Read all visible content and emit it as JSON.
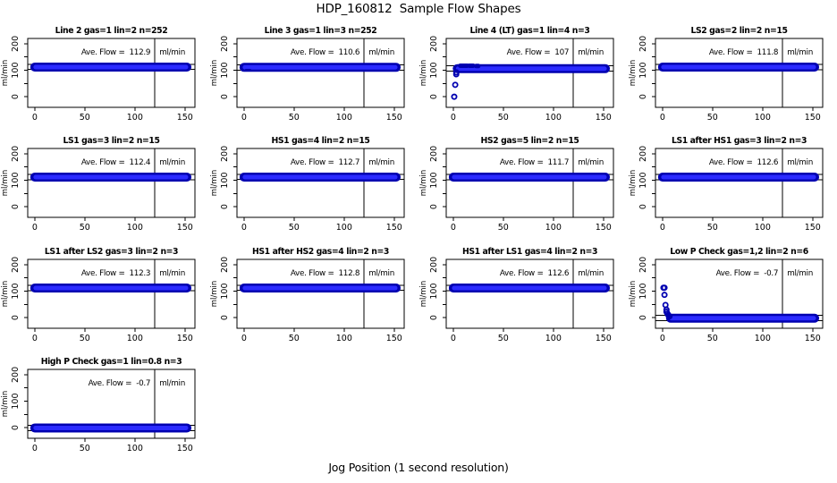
{
  "page_title": "HDP_160812  Sample Flow Shapes",
  "x_axis_label": "Jog Position (1 second resolution)",
  "chart_data": {
    "type": "scatter",
    "grid": "4x4 panel matrix, 13 panels used",
    "shared": {
      "ylabel": "ml/min",
      "xticks": [
        0,
        50,
        100,
        150
      ],
      "yticks_labeled": [
        0,
        100,
        200
      ],
      "yticks_minor": [
        50,
        150
      ],
      "xlim": [
        -7,
        160
      ],
      "ylim": [
        -40,
        220
      ],
      "vline_x": 120,
      "tolerance_band": 10,
      "point_color_outer": "#0000B0",
      "point_color_inner": "#2B2BFF",
      "axis_color": "#000000",
      "annotation_suffix": "ml/min",
      "legend": "none",
      "gridlines": "off"
    },
    "plots": [
      {
        "title": "Line 2 gas=1 lin=2 n=252",
        "ave_flow": 112.9,
        "ann_left": "Ave. Flow =  112.9",
        "bands": [
          {
            "x0": 0,
            "x1": 152,
            "y": 112,
            "w": 10
          }
        ],
        "points": []
      },
      {
        "title": "Line 3 gas=1 lin=3 n=252",
        "ave_flow": 110.6,
        "ann_left": "Ave. Flow =  110.6",
        "bands": [
          {
            "x0": 0,
            "x1": 152,
            "y": 111,
            "w": 10
          },
          {
            "x0": 2,
            "x1": 6,
            "y": 100,
            "w": 3
          }
        ],
        "points": []
      },
      {
        "title": "Line 4 (LT) gas=1 lin=4 n=3",
        "ave_flow": 107,
        "ann_left": "Ave. Flow =  107",
        "bands": [
          {
            "x0": 4,
            "x1": 152,
            "y": 106,
            "w": 10
          },
          {
            "x0": 7,
            "x1": 14,
            "y": 117,
            "w": 5
          },
          {
            "x0": 16,
            "x1": 20,
            "y": 117,
            "w": 5
          },
          {
            "x0": 23,
            "x1": 25,
            "y": 116,
            "w": 5
          }
        ],
        "points": [
          [
            1,
            0
          ],
          [
            2,
            45
          ],
          [
            3,
            85
          ],
          [
            3,
            92
          ]
        ]
      },
      {
        "title": "LS2 gas=2 lin=2 n=15",
        "ave_flow": 111.8,
        "ann_left": "Ave. Flow =  111.8",
        "bands": [
          {
            "x0": 0,
            "x1": 152,
            "y": 112,
            "w": 10
          }
        ],
        "points": []
      },
      {
        "title": "LS1 gas=3 lin=2 n=15",
        "ave_flow": 112.4,
        "ann_left": "Ave. Flow =  112.4",
        "bands": [
          {
            "x0": 0,
            "x1": 152,
            "y": 112,
            "w": 10
          }
        ],
        "points": []
      },
      {
        "title": "HS1 gas=4 lin=2 n=15",
        "ave_flow": 112.7,
        "ann_left": "Ave. Flow =  112.7",
        "bands": [
          {
            "x0": 0,
            "x1": 152,
            "y": 112,
            "w": 10
          }
        ],
        "points": []
      },
      {
        "title": "HS2 gas=5 lin=2 n=15",
        "ave_flow": 111.7,
        "ann_left": "Ave. Flow =  111.7",
        "bands": [
          {
            "x0": 0,
            "x1": 152,
            "y": 112,
            "w": 10
          }
        ],
        "points": []
      },
      {
        "title": "LS1 after HS1 gas=3 lin=2 n=3",
        "ave_flow": 112.6,
        "ann_left": "Ave. Flow =  112.6",
        "bands": [
          {
            "x0": 0,
            "x1": 152,
            "y": 112,
            "w": 10
          }
        ],
        "points": []
      },
      {
        "title": "LS1 after LS2 gas=3 lin=2 n=3",
        "ave_flow": 112.3,
        "ann_left": "Ave. Flow =  112.3",
        "bands": [
          {
            "x0": 0,
            "x1": 152,
            "y": 112,
            "w": 10
          }
        ],
        "points": []
      },
      {
        "title": "HS1 after HS2 gas=4 lin=2 n=3",
        "ave_flow": 112.8,
        "ann_left": "Ave. Flow =  112.8",
        "bands": [
          {
            "x0": 0,
            "x1": 152,
            "y": 112,
            "w": 10
          }
        ],
        "points": []
      },
      {
        "title": "HS1 after LS1 gas=4 lin=2 n=3",
        "ave_flow": 112.6,
        "ann_left": "Ave. Flow =  112.6",
        "bands": [
          {
            "x0": 0,
            "x1": 152,
            "y": 112,
            "w": 10
          }
        ],
        "points": []
      },
      {
        "title": "Low P Check gas=1,2 lin=2 n=6",
        "ave_flow": -0.7,
        "ann_left": "Ave. Flow =  -0.7",
        "bands": [
          {
            "x0": 8,
            "x1": 152,
            "y": -2,
            "w": 10
          }
        ],
        "points": [
          [
            1,
            113
          ],
          [
            2,
            113
          ],
          [
            2,
            86
          ],
          [
            3,
            48
          ],
          [
            4,
            30
          ],
          [
            4,
            22
          ],
          [
            5,
            15
          ],
          [
            6,
            9
          ],
          [
            7,
            5
          ]
        ]
      },
      {
        "title": "High P Check gas=1 lin=0.8 n=3",
        "ave_flow": -0.7,
        "ann_left": "Ave. Flow =  -0.7",
        "bands": [
          {
            "x0": 0,
            "x1": 152,
            "y": -1,
            "w": 10
          }
        ],
        "points": []
      }
    ]
  }
}
